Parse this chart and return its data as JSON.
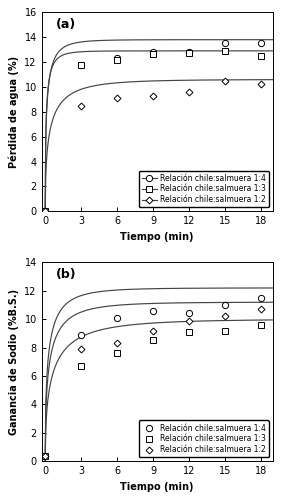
{
  "panel_a": {
    "title": "(a)",
    "ylabel": "Pérdida de agua (%)",
    "xlabel": "Tiempo (min)",
    "ylim": [
      0,
      16
    ],
    "xlim": [
      -0.3,
      19
    ],
    "yticks": [
      0,
      2,
      4,
      6,
      8,
      10,
      12,
      14,
      16
    ],
    "xticks": [
      0,
      3,
      6,
      9,
      12,
      15,
      18
    ],
    "series": [
      {
        "label": "Relación chile:salmuera 1:4",
        "marker": "o",
        "marker_size": 4.5,
        "data_x": [
          0,
          3,
          6,
          9,
          12,
          15,
          18
        ],
        "data_y": [
          0,
          11.8,
          12.3,
          12.8,
          12.8,
          13.5,
          13.5
        ],
        "fit_params": [
          13.8,
          2.5
        ]
      },
      {
        "label": "Relación chile:salmuera 1:3",
        "marker": "s",
        "marker_size": 4.5,
        "data_x": [
          0,
          3,
          6,
          9,
          12,
          15,
          18
        ],
        "data_y": [
          0,
          11.8,
          12.2,
          12.65,
          12.7,
          12.85,
          12.5
        ],
        "fit_params": [
          12.9,
          3.0
        ]
      },
      {
        "label": "Relación chile:salmuera 1:2",
        "marker": "D",
        "marker_size": 3.5,
        "data_x": [
          0,
          3,
          6,
          9,
          12,
          15,
          18
        ],
        "data_y": [
          0,
          8.5,
          9.1,
          9.3,
          9.6,
          10.5,
          10.2
        ],
        "fit_params": [
          10.6,
          1.5
        ]
      }
    ]
  },
  "panel_b": {
    "title": "(b)",
    "ylabel": "Ganancia de Sodio (%B.S.)",
    "xlabel": "Tiempo (min)",
    "ylim": [
      0,
      14
    ],
    "xlim": [
      -0.3,
      19
    ],
    "yticks": [
      0,
      2,
      4,
      6,
      8,
      10,
      12,
      14
    ],
    "xticks": [
      0,
      3,
      6,
      9,
      12,
      15,
      18
    ],
    "series": [
      {
        "label": "Relación chile:salmuera 1:4",
        "marker": "o",
        "marker_size": 4.5,
        "data_x": [
          0,
          3,
          6,
          9,
          12,
          15,
          18
        ],
        "data_y": [
          0.4,
          8.9,
          10.05,
          10.6,
          10.4,
          11.0,
          11.5
        ],
        "fit_params": [
          12.2,
          1.8
        ]
      },
      {
        "label": "Relación chile:salmuera 1:3",
        "marker": "s",
        "marker_size": 4.5,
        "data_x": [
          0,
          3,
          6,
          9,
          12,
          15,
          18
        ],
        "data_y": [
          0.4,
          6.7,
          7.6,
          8.5,
          9.1,
          9.2,
          9.6
        ],
        "fit_params": [
          10.0,
          1.2
        ]
      },
      {
        "label": "Relación chile:salmuera 1:2",
        "marker": "D",
        "marker_size": 3.5,
        "data_x": [
          0,
          3,
          6,
          9,
          12,
          15,
          18
        ],
        "data_y": [
          0.4,
          7.9,
          8.35,
          9.15,
          9.85,
          10.2,
          10.7
        ],
        "fit_params": [
          11.2,
          1.6
        ]
      }
    ]
  },
  "legend_a_lines": true,
  "legend_b_lines": false,
  "legend_labels": [
    "Relación chile:salmuera 1:4",
    "Relación chile:salmuera 1:3",
    "Relación chile:salmuera 1:2"
  ],
  "legend_markers": [
    "o",
    "s",
    "D"
  ],
  "bg_color": "#ffffff",
  "line_color": "#555555",
  "font_size": 7,
  "title_font_size": 9
}
